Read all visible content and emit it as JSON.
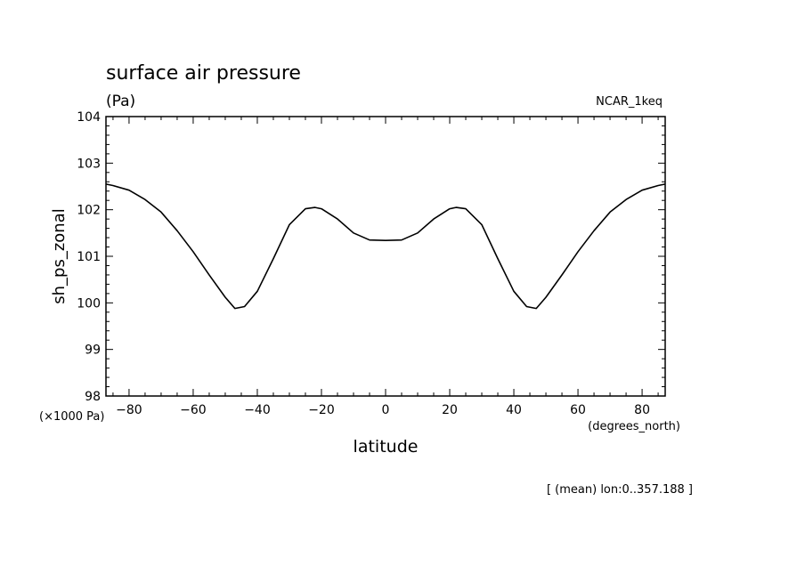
{
  "page": {
    "title": "surface air pressure",
    "units": "(Pa)",
    "dataset": "NCAR_1keq",
    "scale_note": "(×1000 Pa)",
    "x_units": "(degrees_north)",
    "footnote": "[ (mean) lon:0..357.188 ]"
  },
  "chart_data": {
    "type": "line",
    "title": "surface air pressure",
    "xlabel": "latitude",
    "ylabel": "sh_ps_zonal",
    "xlim": [
      -87.2,
      87.2
    ],
    "ylim": [
      98,
      104
    ],
    "grid": false,
    "x_ticks": [
      -80,
      -60,
      -40,
      -20,
      0,
      20,
      40,
      60,
      80
    ],
    "x_tick_labels": [
      "−80",
      "−60",
      "−40",
      "−20",
      "0",
      "20",
      "40",
      "60",
      "80"
    ],
    "y_ticks": [
      98,
      99,
      100,
      101,
      102,
      103,
      104
    ],
    "y_tick_labels": [
      "98",
      "99",
      "100",
      "101",
      "102",
      "103",
      "104"
    ],
    "series": [
      {
        "color": "#000000",
        "x": [
          -87.2,
          -85,
          -80,
          -75,
          -70,
          -65,
          -60,
          -55,
          -50,
          -47,
          -44,
          -40,
          -35,
          -30,
          -25,
          -22,
          -20,
          -15,
          -10,
          -5,
          0,
          5,
          10,
          15,
          20,
          22,
          25,
          30,
          35,
          40,
          44,
          47,
          50,
          55,
          60,
          65,
          70,
          75,
          80,
          85,
          87.2
        ],
        "y": [
          102.55,
          102.52,
          102.42,
          102.22,
          101.95,
          101.55,
          101.1,
          100.6,
          100.12,
          99.88,
          99.92,
          100.25,
          100.95,
          101.68,
          102.02,
          102.05,
          102.02,
          101.8,
          101.5,
          101.35,
          101.34,
          101.35,
          101.5,
          101.8,
          102.02,
          102.05,
          102.02,
          101.68,
          100.95,
          100.25,
          99.92,
          99.88,
          100.12,
          100.6,
          101.1,
          101.55,
          101.95,
          102.22,
          102.42,
          102.52,
          102.55
        ]
      }
    ]
  }
}
